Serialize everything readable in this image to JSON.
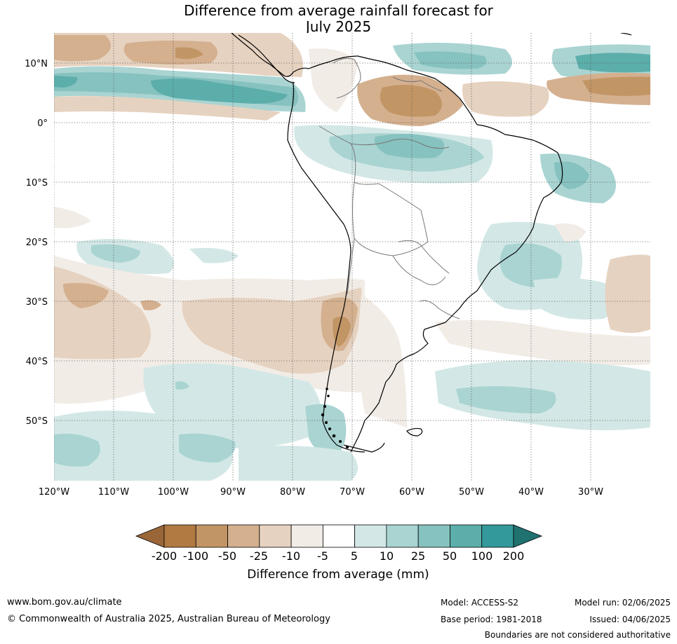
{
  "title_line1": "Difference from average rainfall forecast for",
  "title_line2": "July 2025",
  "lat_labels": [
    "10°N",
    "0°",
    "10°S",
    "20°S",
    "30°S",
    "40°S",
    "50°S"
  ],
  "lon_labels": [
    "120°W",
    "110°W",
    "100°W",
    "90°W",
    "80°W",
    "70°W",
    "60°W",
    "50°W",
    "40°W",
    "30°W"
  ],
  "colorbar": {
    "label": "Difference from average (mm)",
    "ticks": [
      "-200",
      "-100",
      "-50",
      "-25",
      "-10",
      "-5",
      "5",
      "10",
      "25",
      "50",
      "100",
      "200"
    ],
    "colors": [
      "#9a6638",
      "#b07a42",
      "#c29565",
      "#d4b08f",
      "#e6d2c0",
      "#f2ece6",
      "#ffffff",
      "#d3e8e6",
      "#a9d4d2",
      "#86c2bf",
      "#5caeab",
      "#33999a",
      "#207271"
    ]
  },
  "footer": {
    "website": "www.bom.gov.au/climate",
    "copyright": "© Commonwealth of Australia 2025, Australian Bureau of Meteorology",
    "model": "Model: ACCESS-S2",
    "base_period": "Base period: 1981-2018",
    "model_run": "Model run: 02/06/2025",
    "issued": "Issued: 04/06/2025",
    "disclaimer": "Boundaries are not considered authoritative"
  }
}
